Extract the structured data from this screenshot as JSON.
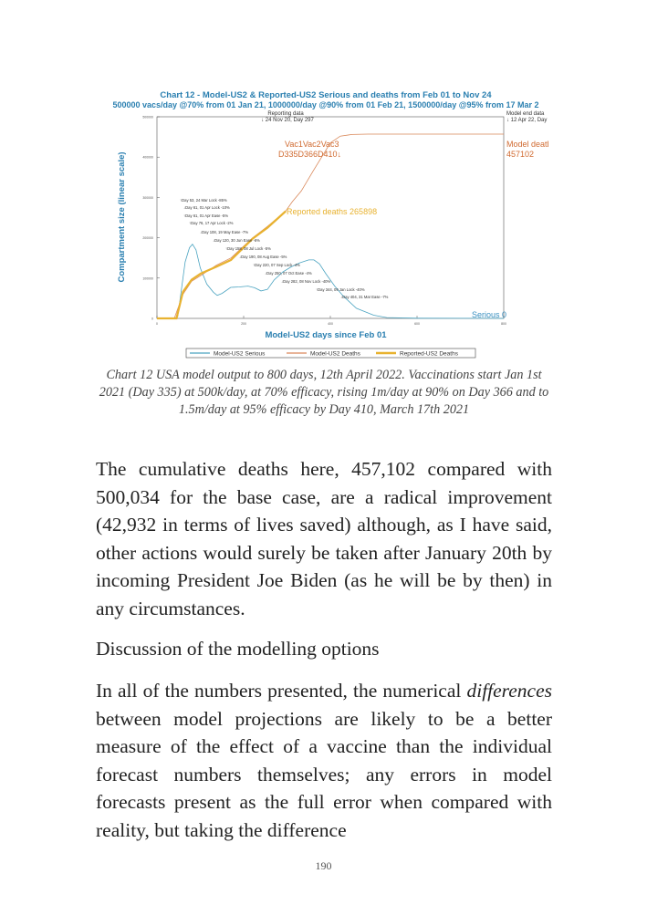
{
  "chart_data": {
    "type": "line",
    "title": "Chart 12 - Model-US2 & Reported-US2 Serious and deaths from Feb 01 to Nov 24",
    "subtitle": "500000 vacs/day @70% from 01 Jan 21, 1000000/day @90% from 01 Feb 21, 1500000/day @95% from 17 Mar 2",
    "xlabel": "Model-US2 days since Feb 01",
    "ylabel": "Compartment size (linear scale)",
    "xlim": [
      0,
      800
    ],
    "ylim": [
      0,
      500000
    ],
    "xticks": [
      0,
      200,
      400,
      600,
      800
    ],
    "yticks": [
      0,
      100000,
      200000,
      300000,
      400000,
      500000
    ],
    "legend": "bottom",
    "series": [
      {
        "name": "Model-US2 Serious",
        "color": "#4aa3c0",
        "x": [
          0,
          40,
          48,
          55,
          65,
          75,
          82,
          90,
          100,
          115,
          130,
          139,
          150,
          170,
          190,
          210,
          225,
          240,
          255,
          270,
          290,
          310,
          330,
          350,
          362,
          375,
          390,
          410,
          430,
          460,
          500,
          530,
          600,
          800
        ],
        "y": [
          0,
          0,
          5000,
          60000,
          140000,
          175000,
          184000,
          170000,
          125000,
          85000,
          65000,
          57000,
          62000,
          77000,
          78000,
          80000,
          76000,
          68000,
          72000,
          95000,
          115000,
          128000,
          138000,
          145000,
          145000,
          135000,
          110000,
          80000,
          55000,
          25000,
          8000,
          2000,
          500,
          0
        ]
      },
      {
        "name": "Model-US2 Deaths",
        "color": "#d9885a",
        "x": [
          0,
          40,
          60,
          80,
          101,
          137,
          171,
          221,
          255,
          297,
          312,
          333,
          360,
          381,
          400,
          423,
          450,
          486,
          600,
          800
        ],
        "y": [
          0,
          0,
          60000,
          92000,
          106000,
          132000,
          150000,
          200000,
          228000,
          266000,
          289000,
          316000,
          365000,
          402000,
          435000,
          452000,
          456000,
          457102,
          457102,
          457102
        ]
      },
      {
        "name": "Reported-US2 Deaths",
        "color": "#e8b230",
        "x": [
          0,
          45,
          60,
          80,
          101,
          137,
          171,
          221,
          255,
          297
        ],
        "y": [
          0,
          0,
          66000,
          96000,
          111000,
          128000,
          145000,
          198000,
          225000,
          265898
        ]
      }
    ],
    "annotations": {
      "reporting": [
        "Reporting data",
        "↓ 24 Nov 20, Day 297"
      ],
      "model_end": [
        "Model end data",
        "↓ 12 Apr 22, Day"
      ],
      "vac": [
        "Vac1Vac2Vac3",
        "D335D366D410↓"
      ],
      "model_deaths": [
        "Model deatl",
        "457102"
      ],
      "reported_deaths": "Reported deaths 265898",
      "serious": "Serious 0",
      "events": [
        "↑Day 53, 24 Mar Lock -85%",
        "↓Day 61, 01 Apr Lock -10%",
        "↑Day 61, 01 Apr Ease -5%",
        "↑Day 76, 17 Apr Lock -2%",
        "↓Day 108, 19 May Ease -7%",
        "↓Day 120, 30 Jun Ease -6%",
        "↑Day 158, 08 Jul Lock -5%",
        "↓Day 190, 08 Aug Ease -5%",
        "↑Day 220, 07 Sep Lock -4%",
        "↓Day 250, 07 Oct Ease -4%",
        "↓Day 282, 08 Nov Lock -40%",
        "↑Day 344, 09 Jan Lock -40%",
        "↓Day 404, 31 Mar Ease -7%"
      ]
    }
  },
  "caption": "Chart 12 USA model output to 800 days, 12th April 2022. Vaccinations start Jan 1st 2021 (Day 335) at 500k/day, at 70% efficacy, rising 1m/day at 90% on Day 366 and to 1.5m/day at 95% efficacy by Day 410, March 17th 2021",
  "para1": "The cumulative deaths here, 457,102 compared with 500,034 for the base case, are a radical improvement (42,932 in terms of lives saved) although, as I have said, other actions would surely be taken after January 20th by incoming President Joe Biden (as he will be by then) in any circumstances.",
  "heading": "Discussion of the modelling options",
  "para2_em": "differences",
  "para2_a": "In all of the numbers presented, the numerical ",
  "para2_b": " between model projections are likely to be a better measure of the effect of a vaccine than the individual forecast numbers themselves; any errors in model forecasts present as the full error when compared with reality, but taking the difference",
  "page_number": "190"
}
